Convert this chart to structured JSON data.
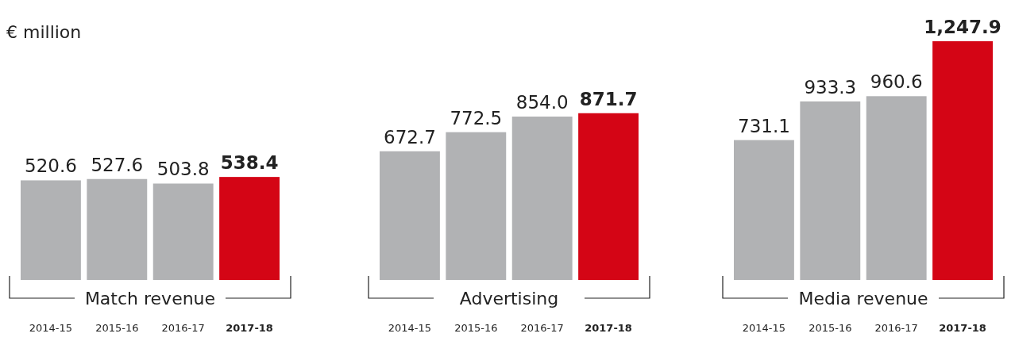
{
  "chart_data": [
    {
      "type": "bar",
      "subtitle": "€ million",
      "xlabel": "Match revenue",
      "categories": [
        "2014-15",
        "2015-16",
        "2016-17",
        "2017-18"
      ],
      "values": [
        520.6,
        527.6,
        503.8,
        538.4
      ],
      "value_labels": [
        "520.6",
        "527.6",
        "503.8",
        "538.4"
      ],
      "colors": [
        "#b1b2b4",
        "#b1b2b4",
        "#b1b2b4",
        "#d40515"
      ]
    },
    {
      "type": "bar",
      "xlabel": "Advertising",
      "categories": [
        "2014-15",
        "2015-16",
        "2016-17",
        "2017-18"
      ],
      "values": [
        672.7,
        772.5,
        854.0,
        871.7
      ],
      "value_labels": [
        "672.7",
        "772.5",
        "854.0",
        "871.7"
      ],
      "colors": [
        "#b1b2b4",
        "#b1b2b4",
        "#b1b2b4",
        "#d40515"
      ]
    },
    {
      "type": "bar",
      "xlabel": "Media revenue",
      "categories": [
        "2014-15",
        "2015-16",
        "2016-17",
        "2017-18"
      ],
      "values": [
        731.1,
        933.3,
        960.6,
        1247.9
      ],
      "value_labels": [
        "731.1",
        "933.3",
        "960.6",
        "1,247.9"
      ],
      "colors": [
        "#b1b2b4",
        "#b1b2b4",
        "#b1b2b4",
        "#d40515"
      ]
    }
  ]
}
